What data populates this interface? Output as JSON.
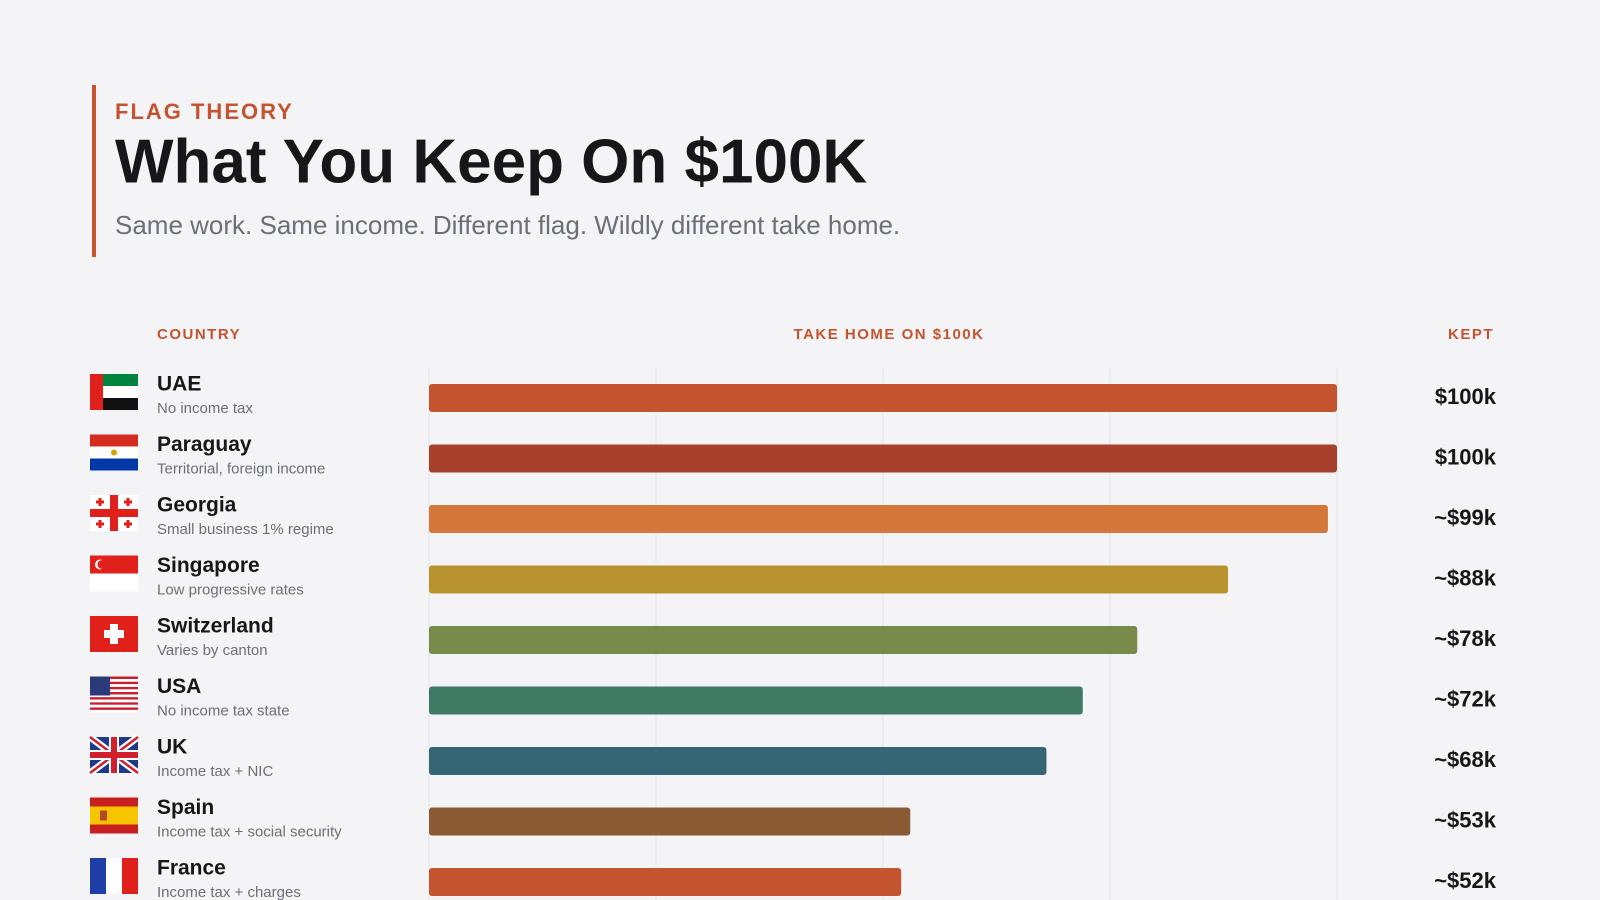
{
  "chart_data": {
    "type": "bar",
    "orientation": "horizontal",
    "eyebrow": "FLAG THEORY",
    "title": "What You Keep On $100K",
    "subtitle": "Same work. Same income. Different flag. Wildly different take home.",
    "headers": {
      "category": "COUNTRY",
      "bar": "TAKE HOME ON $100K",
      "value": "KEPT"
    },
    "categories": [
      "UAE",
      "Paraguay",
      "Georgia",
      "Singapore",
      "Switzerland",
      "USA",
      "UK",
      "Spain",
      "France"
    ],
    "notes": [
      "No income tax",
      "Territorial, foreign income",
      "Small business 1% regime",
      "Low progressive rates",
      "Varies by canton",
      "No income tax state",
      "Income tax + NIC",
      "Income tax + social security",
      "Income tax + charges"
    ],
    "values": [
      100,
      100,
      99,
      88,
      78,
      72,
      68,
      53,
      52
    ],
    "value_labels": [
      "$100k",
      "$100k",
      "~$99k",
      "~$88k",
      "~$78k",
      "~$72k",
      "~$68k",
      "~$53k",
      "~$52k"
    ],
    "colors": [
      "#c4532f",
      "#a8412b",
      "#d4773a",
      "#b8922f",
      "#7a8a4a",
      "#3f7a64",
      "#366575",
      "#8a5a34",
      "#c4532f"
    ],
    "xlim": [
      0,
      100
    ],
    "gridlines": [
      0,
      25,
      50,
      75,
      100
    ]
  }
}
